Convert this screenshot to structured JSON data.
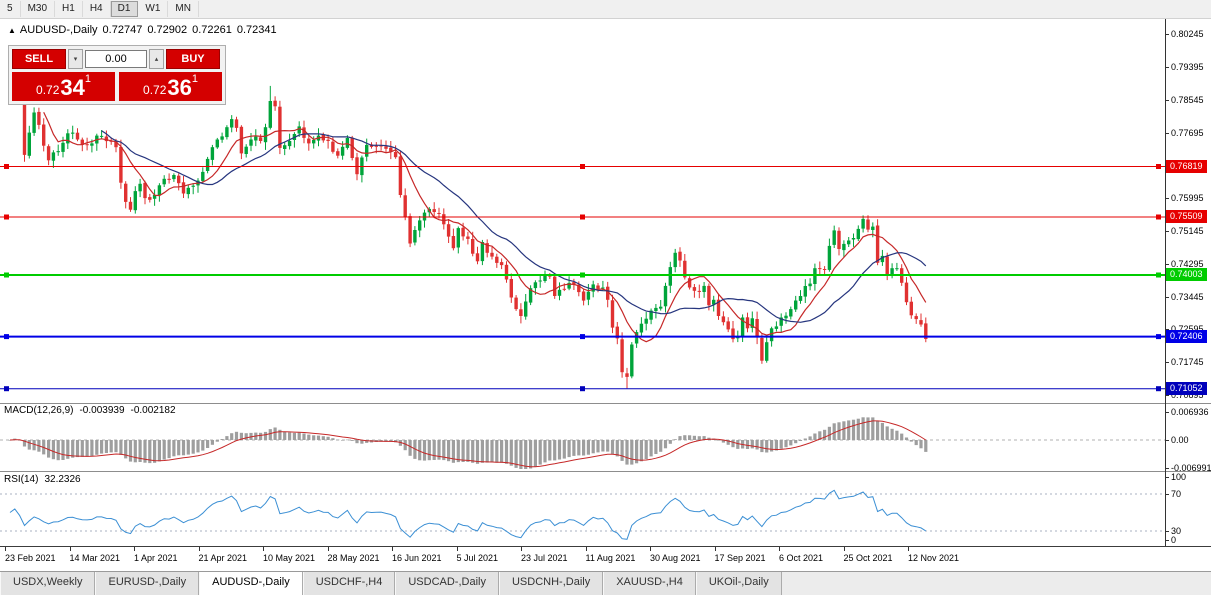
{
  "toolbar": {
    "timeframes": [
      {
        "label": "5",
        "active": false
      },
      {
        "label": "M30",
        "active": false
      },
      {
        "label": "H1",
        "active": false
      },
      {
        "label": "H4",
        "active": false
      },
      {
        "label": "D1",
        "active": true
      },
      {
        "label": "W1",
        "active": false
      },
      {
        "label": "MN",
        "active": false
      }
    ]
  },
  "chart_header": {
    "symbol": "AUDUSD-,Daily",
    "open": "0.72747",
    "high": "0.72902",
    "low": "0.72261",
    "close": "0.72341"
  },
  "trade_panel": {
    "sell_label": "SELL",
    "buy_label": "BUY",
    "volume": "0.00",
    "bid": {
      "prefix": "0.72",
      "big": "34",
      "sup": "1"
    },
    "ask": {
      "prefix": "0.72",
      "big": "36",
      "sup": "1"
    }
  },
  "price_axis": {
    "labels": [
      "0.80245",
      "0.79395",
      "0.78545",
      "0.77695",
      "0.76845",
      "0.75995",
      "0.75145",
      "0.74295",
      "0.73445",
      "0.72595",
      "0.71745",
      "0.70895"
    ]
  },
  "hlines": [
    {
      "price": 0.76819,
      "label": "0.76819",
      "color": "#e60000",
      "thickness": 1
    },
    {
      "price": 0.75509,
      "label": "0.75509",
      "color": "#e60000",
      "thickness": 1
    },
    {
      "price": 0.74003,
      "label": "0.74003",
      "color": "#00cc00",
      "thickness": 2
    },
    {
      "price": 0.72406,
      "label": "0.72406",
      "color": "#0000e6",
      "thickness": 2
    },
    {
      "price": 0.71052,
      "label": "0.71052",
      "color": "#0000bb",
      "thickness": 1
    }
  ],
  "macd_panel": {
    "title": "MACD(12,26,9)",
    "value_main": "-0.003939",
    "value_signal": "-0.002182",
    "axis_labels": [
      "0.006936",
      "0.00",
      "-0.006991"
    ]
  },
  "rsi_panel": {
    "title": "RSI(14)",
    "value": "32.2326",
    "axis_labels": [
      100,
      70,
      30,
      0
    ],
    "levels": [
      70,
      30
    ]
  },
  "x_axis": {
    "dates": [
      "23 Feb 2021",
      "14 Mar 2021",
      "1 Apr 2021",
      "21 Apr 2021",
      "10 May 2021",
      "28 May 2021",
      "16 Jun 2021",
      "5 Jul 2021",
      "23 Jul 2021",
      "11 Aug 2021",
      "30 Aug 2021",
      "17 Sep 2021",
      "6 Oct 2021",
      "25 Oct 2021",
      "12 Nov 2021"
    ]
  },
  "tabs": [
    {
      "label": "USDX,Weekly",
      "active": false
    },
    {
      "label": "EURUSD-,Daily",
      "active": false
    },
    {
      "label": "AUDUSD-,Daily",
      "active": true
    },
    {
      "label": "USDCHF-,H4",
      "active": false
    },
    {
      "label": "USDCAD-,Daily",
      "active": false
    },
    {
      "label": "USDCNH-,Daily",
      "active": false
    },
    {
      "label": "XAUUSD-,H4",
      "active": false
    },
    {
      "label": "UKOil-,Daily",
      "active": false
    }
  ],
  "colors": {
    "accent_red": "#d40000",
    "bull": "#00a43a",
    "bear": "#e03131",
    "ma_fast": "#c62828",
    "ma_slow": "#26357e",
    "macd_hist": "#9e9e9e",
    "macd_signal": "#c62828",
    "rsi_line": "#3b8fd4",
    "level_dotted": "#a8b0c0"
  },
  "chart_data": {
    "type": "candlestick",
    "symbol": "AUDUSD",
    "timeframe": "Daily",
    "num_days": 191,
    "price_ylim": [
      0.7076,
      0.8062
    ],
    "last_candle": {
      "open": 0.72747,
      "high": 0.72902,
      "low": 0.72261,
      "close": 0.72341
    },
    "ma_fast_period": 8,
    "ma_slow_period": 20,
    "macd_params": [
      12,
      26,
      9
    ],
    "rsi_period": 14,
    "close_price_anchors_by_day": [
      [
        0,
        0.7915
      ],
      [
        1,
        0.7958
      ],
      [
        2,
        0.788
      ],
      [
        3,
        0.7712
      ],
      [
        4,
        0.777
      ],
      [
        5,
        0.7822
      ],
      [
        6,
        0.779
      ],
      [
        8,
        0.7698
      ],
      [
        10,
        0.7722
      ],
      [
        12,
        0.7768
      ],
      [
        14,
        0.7752
      ],
      [
        16,
        0.7738
      ],
      [
        18,
        0.7762
      ],
      [
        20,
        0.7748
      ],
      [
        22,
        0.7732
      ],
      [
        23,
        0.764
      ],
      [
        24,
        0.759
      ],
      [
        25,
        0.757
      ],
      [
        26,
        0.7618
      ],
      [
        27,
        0.7637
      ],
      [
        28,
        0.76
      ],
      [
        30,
        0.7608
      ],
      [
        32,
        0.765
      ],
      [
        34,
        0.766
      ],
      [
        36,
        0.7612
      ],
      [
        38,
        0.7632
      ],
      [
        40,
        0.7668
      ],
      [
        42,
        0.7732
      ],
      [
        44,
        0.776
      ],
      [
        46,
        0.7805
      ],
      [
        47,
        0.7782
      ],
      [
        48,
        0.7716
      ],
      [
        50,
        0.7752
      ],
      [
        52,
        0.7748
      ],
      [
        53,
        0.7784
      ],
      [
        54,
        0.7852
      ],
      [
        55,
        0.7838
      ],
      [
        56,
        0.773
      ],
      [
        58,
        0.7748
      ],
      [
        60,
        0.7786
      ],
      [
        62,
        0.7742
      ],
      [
        64,
        0.7762
      ],
      [
        66,
        0.7748
      ],
      [
        68,
        0.771
      ],
      [
        70,
        0.7756
      ],
      [
        72,
        0.7662
      ],
      [
        74,
        0.7738
      ],
      [
        76,
        0.7735
      ],
      [
        78,
        0.7728
      ],
      [
        80,
        0.7706
      ],
      [
        81,
        0.7608
      ],
      [
        82,
        0.7552
      ],
      [
        83,
        0.7482
      ],
      [
        85,
        0.7542
      ],
      [
        87,
        0.7572
      ],
      [
        89,
        0.756
      ],
      [
        91,
        0.75
      ],
      [
        92,
        0.747
      ],
      [
        93,
        0.7522
      ],
      [
        95,
        0.7494
      ],
      [
        97,
        0.7436
      ],
      [
        98,
        0.7486
      ],
      [
        100,
        0.7448
      ],
      [
        102,
        0.7426
      ],
      [
        104,
        0.7342
      ],
      [
        105,
        0.7312
      ],
      [
        106,
        0.7294
      ],
      [
        108,
        0.7366
      ],
      [
        110,
        0.7386
      ],
      [
        112,
        0.7396
      ],
      [
        113,
        0.7346
      ],
      [
        114,
        0.7362
      ],
      [
        116,
        0.738
      ],
      [
        118,
        0.7356
      ],
      [
        119,
        0.7334
      ],
      [
        121,
        0.7376
      ],
      [
        123,
        0.7368
      ],
      [
        124,
        0.7336
      ],
      [
        125,
        0.7264
      ],
      [
        126,
        0.7236
      ],
      [
        127,
        0.7148
      ],
      [
        128,
        0.7136
      ],
      [
        129,
        0.722
      ],
      [
        131,
        0.7274
      ],
      [
        133,
        0.7308
      ],
      [
        135,
        0.7318
      ],
      [
        136,
        0.7372
      ],
      [
        138,
        0.7458
      ],
      [
        139,
        0.7438
      ],
      [
        141,
        0.7368
      ],
      [
        143,
        0.7358
      ],
      [
        144,
        0.7372
      ],
      [
        145,
        0.7322
      ],
      [
        146,
        0.7336
      ],
      [
        147,
        0.7294
      ],
      [
        148,
        0.7278
      ],
      [
        150,
        0.7234
      ],
      [
        151,
        0.724
      ],
      [
        152,
        0.729
      ],
      [
        153,
        0.7262
      ],
      [
        154,
        0.7288
      ],
      [
        155,
        0.7238
      ],
      [
        156,
        0.7178
      ],
      [
        157,
        0.7226
      ],
      [
        158,
        0.7262
      ],
      [
        160,
        0.729
      ],
      [
        162,
        0.7312
      ],
      [
        164,
        0.7346
      ],
      [
        166,
        0.7378
      ],
      [
        167,
        0.7418
      ],
      [
        169,
        0.7414
      ],
      [
        170,
        0.7476
      ],
      [
        171,
        0.7516
      ],
      [
        172,
        0.7468
      ],
      [
        174,
        0.749
      ],
      [
        176,
        0.752
      ],
      [
        177,
        0.7546
      ],
      [
        178,
        0.7518
      ],
      [
        179,
        0.7526
      ],
      [
        180,
        0.7432
      ],
      [
        181,
        0.745
      ],
      [
        182,
        0.74
      ],
      [
        184,
        0.7418
      ],
      [
        185,
        0.738
      ],
      [
        186,
        0.733
      ],
      [
        187,
        0.7296
      ],
      [
        188,
        0.7286
      ],
      [
        189,
        0.7272
      ],
      [
        190,
        0.72341
      ]
    ],
    "high_overrides": {
      "2": 0.7968,
      "54": 0.7891,
      "177": 0.7555
    },
    "low_overrides": {
      "128": 0.7106,
      "156": 0.717
    }
  }
}
